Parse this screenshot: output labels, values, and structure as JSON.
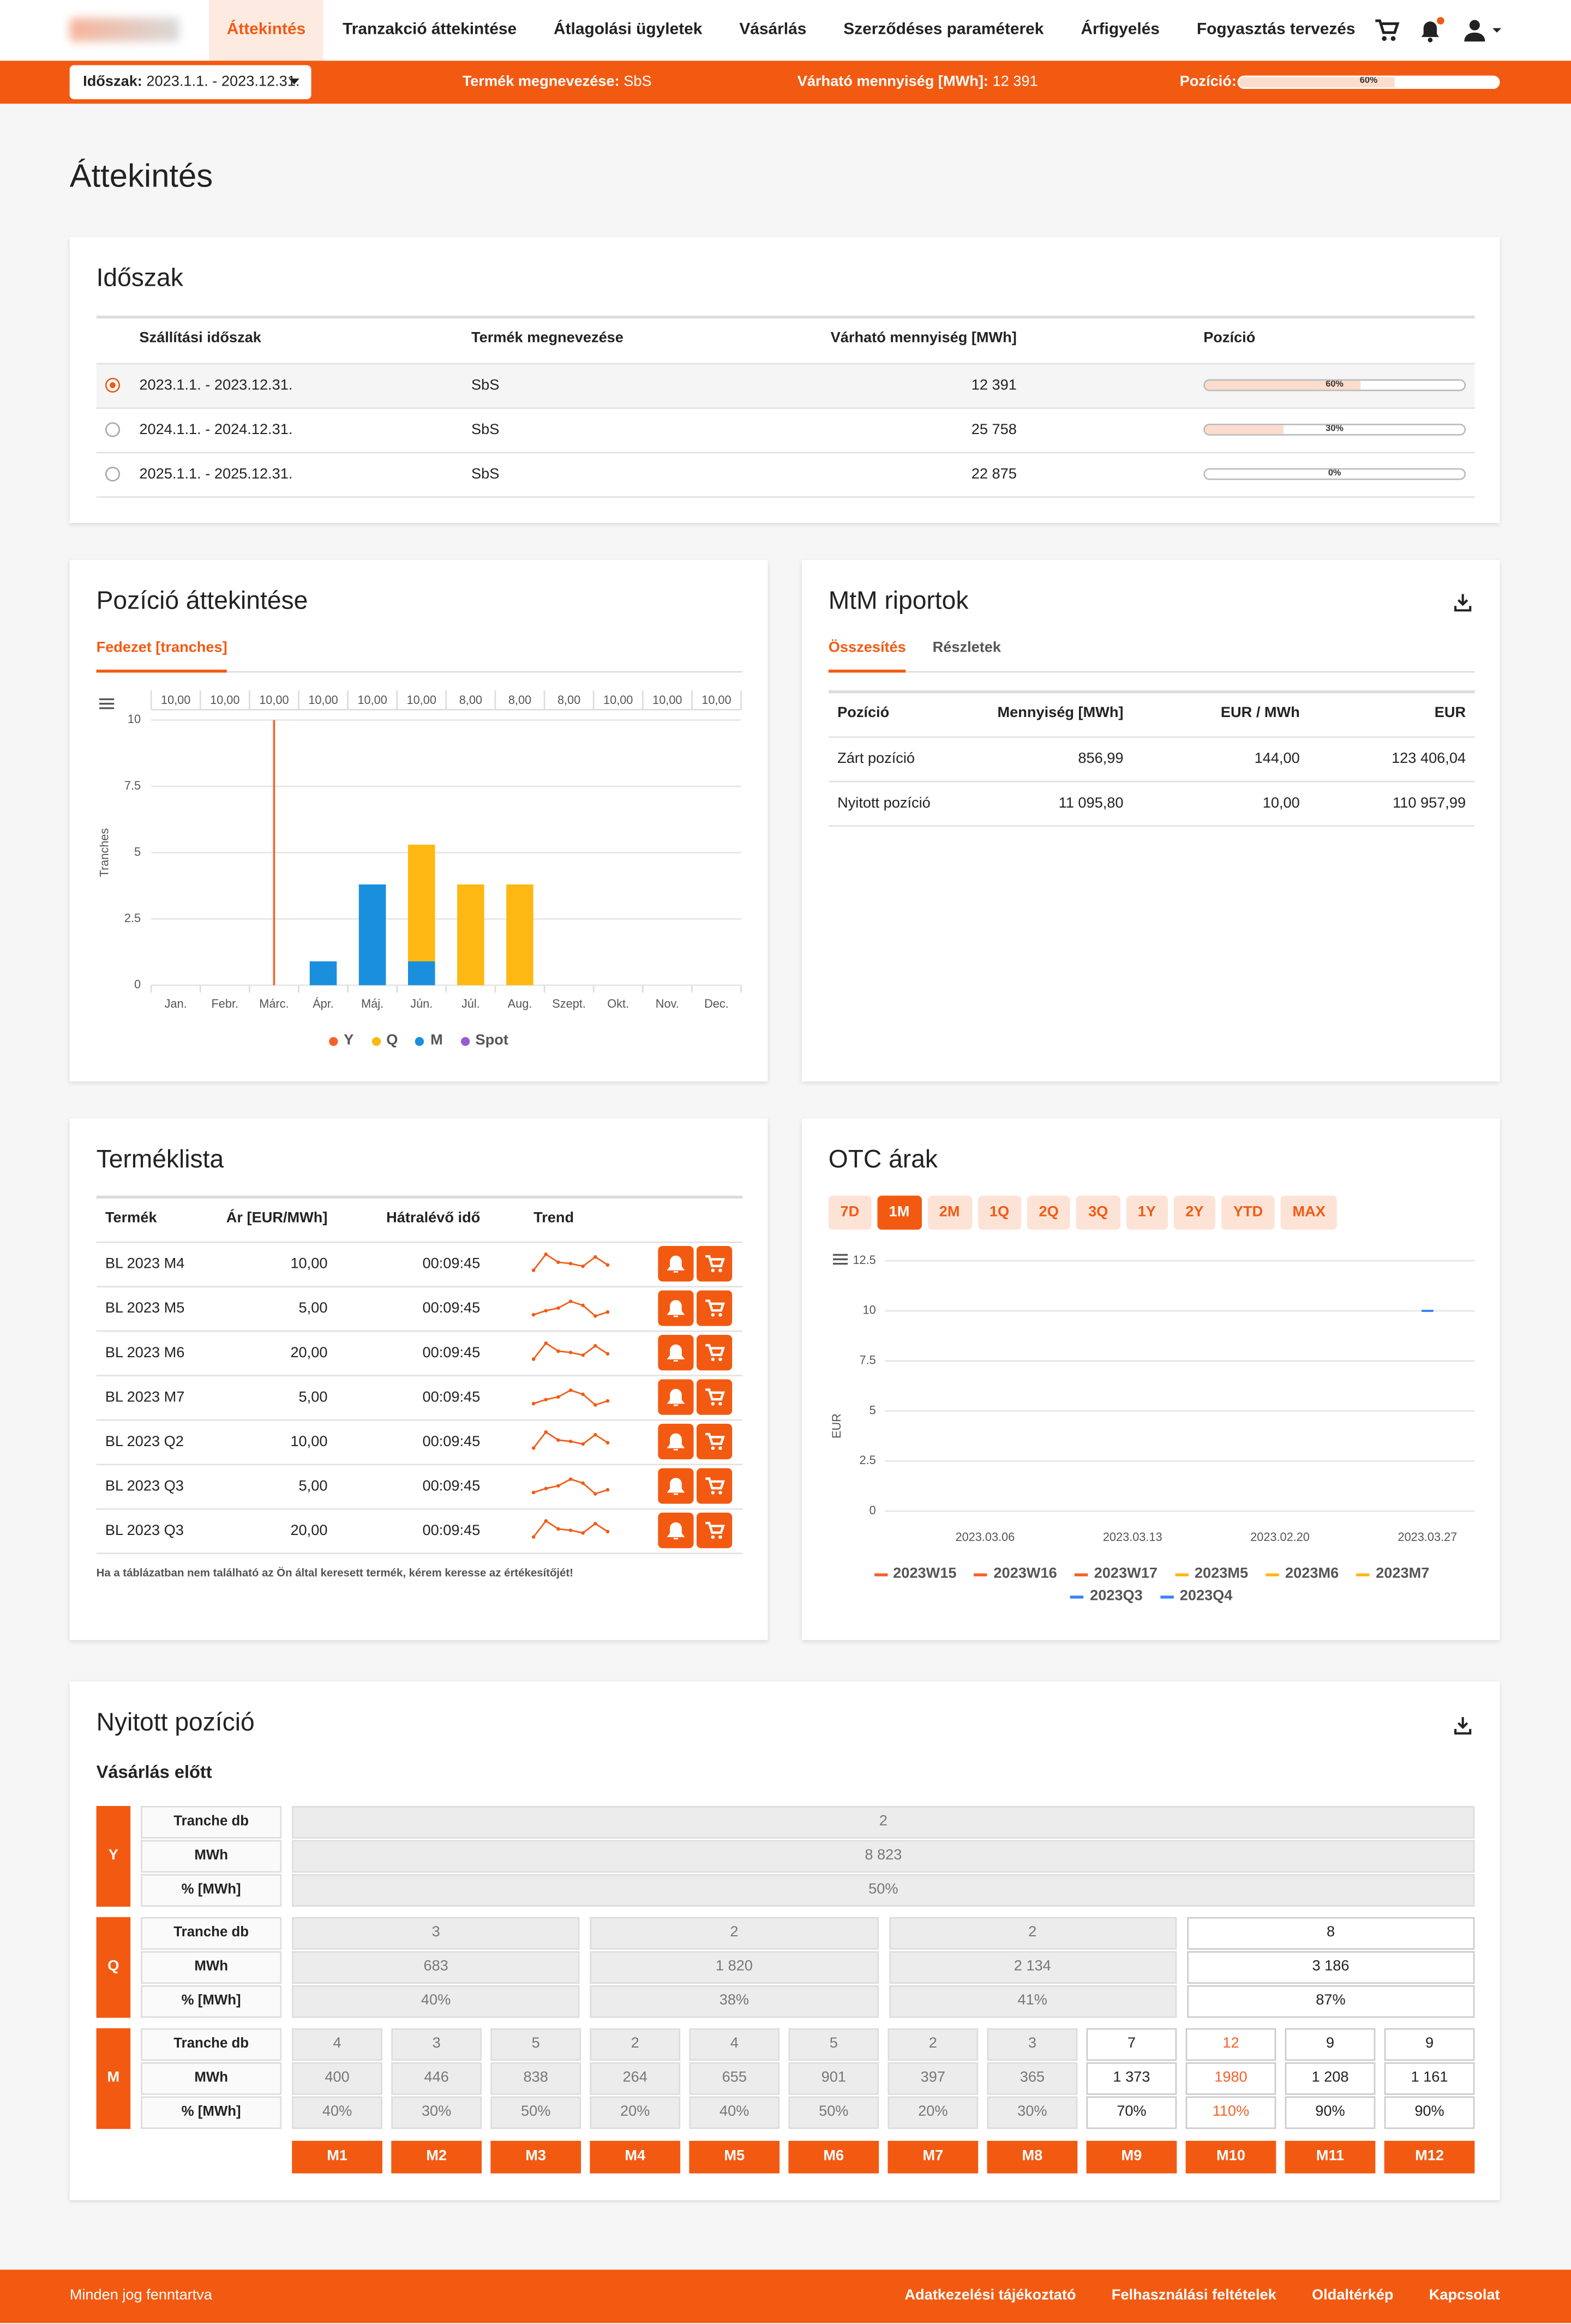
{
  "nav": {
    "items": [
      "Áttekintés",
      "Tranzakció áttekintése",
      "Átlagolási ügyletek",
      "Vásárlás",
      "Szerződéses paraméterek",
      "Árfigyelés",
      "Fogyasztás tervezés"
    ],
    "active": 0
  },
  "filter_bar": {
    "period_label": "Időszak:",
    "period": "2023.1.1. - 2023.12.31.",
    "product_label": "Termék megnevezése:",
    "product": "SbS",
    "quantity_label": "Várható mennyiség [MWh]:",
    "quantity": "12 391",
    "position_label": "Pozíció:",
    "position": {
      "value": 60,
      "label": "60%"
    }
  },
  "page_title": "Áttekintés",
  "period_card": {
    "title": "Időszak",
    "headers": [
      "Szállítási időszak",
      "Termék megnevezése",
      "Várható mennyiség [MWh]",
      "Pozíció"
    ],
    "rows": [
      {
        "period": "2023.1.1. - 2023.12.31.",
        "product": "SbS",
        "quantity": "12 391",
        "position": {
          "value": 60,
          "label": "60%"
        },
        "selected": true
      },
      {
        "period": "2024.1.1. - 2024.12.31.",
        "product": "SbS",
        "quantity": "25 758",
        "position": {
          "value": 30,
          "label": "30%"
        },
        "selected": false
      },
      {
        "period": "2025.1.1. - 2025.12.31.",
        "product": "SbS",
        "quantity": "22 875",
        "position": {
          "value": 0,
          "label": "0%"
        },
        "selected": false
      }
    ]
  },
  "position_chart": {
    "title": "Pozíció áttekintése",
    "tab": "Fedezet [tranches]",
    "chart": {
      "type": "bar",
      "stacked": true,
      "y_label": "Tranches",
      "categories": [
        "Jan.",
        "Febr.",
        "Márc.",
        "Ápr.",
        "Máj.",
        "Jún.",
        "Júl.",
        "Aug.",
        "Szept.",
        "Okt.",
        "Nov.",
        "Dec."
      ],
      "top_labels": [
        "10,00",
        "10,00",
        "10,00",
        "10,00",
        "10,00",
        "10,00",
        "8,00",
        "8,00",
        "8,00",
        "10,00",
        "10,00",
        "10,00"
      ],
      "ylim": [
        0,
        10
      ],
      "yticks": [
        0,
        2.5,
        5,
        7.5,
        10
      ],
      "grid": true,
      "series": [
        {
          "name": "Y",
          "color": "#f4622a",
          "values": [
            0,
            0,
            10,
            0,
            0,
            0,
            0,
            0,
            0,
            0,
            0,
            0
          ]
        },
        {
          "name": "Q",
          "color": "#fdb813",
          "values": [
            0,
            0,
            0,
            0,
            0,
            4.4,
            3.8,
            3.8,
            0,
            0,
            0,
            0
          ]
        },
        {
          "name": "M",
          "color": "#1a8fdd",
          "values": [
            0,
            0,
            0,
            0.9,
            3.8,
            0.9,
            0,
            0,
            0,
            0,
            0,
            0
          ]
        },
        {
          "name": "Spot",
          "color": "#9b59d6",
          "values": [
            0,
            0,
            0,
            0,
            0,
            0,
            0,
            0,
            0,
            0,
            0,
            0
          ]
        }
      ]
    }
  },
  "mtm_card": {
    "title": "MtM riportok",
    "tabs": [
      "Összesítés",
      "Részletek"
    ],
    "active_tab": 0,
    "headers": [
      "Pozíció",
      "Mennyiség [MWh]",
      "EUR / MWh",
      "EUR"
    ],
    "rows": [
      [
        "Zárt pozíció",
        "856,99",
        "144,00",
        "123 406,04"
      ],
      [
        "Nyitott pozíció",
        "11 095,80",
        "10,00",
        "110 957,99"
      ]
    ]
  },
  "product_list": {
    "title": "Terméklista",
    "headers": [
      "Termék",
      "Ár [EUR/MWh]",
      "Hátralévő idő",
      "Trend"
    ],
    "rows": [
      {
        "product": "BL 2023 M4",
        "price": "10,00",
        "time": "00:09:45",
        "trend": [
          2,
          8,
          5,
          4.5,
          3.5,
          7,
          4
        ]
      },
      {
        "product": "BL 2023 M5",
        "price": "5,00",
        "time": "00:09:45",
        "trend": [
          2,
          3.5,
          4.5,
          7,
          5.5,
          1.5,
          3
        ]
      },
      {
        "product": "BL 2023 M6",
        "price": "20,00",
        "time": "00:09:45",
        "trend": [
          2,
          8,
          5,
          4.5,
          3.5,
          7,
          4
        ]
      },
      {
        "product": "BL 2023 M7",
        "price": "5,00",
        "time": "00:09:45",
        "trend": [
          2,
          3.5,
          4.5,
          7,
          5.5,
          1.5,
          3
        ]
      },
      {
        "product": "BL 2023 Q2",
        "price": "10,00",
        "time": "00:09:45",
        "trend": [
          2,
          8,
          5,
          4.5,
          3.5,
          7,
          4
        ]
      },
      {
        "product": "BL 2023 Q3",
        "price": "5,00",
        "time": "00:09:45",
        "trend": [
          2,
          3.5,
          4.5,
          7,
          5.5,
          1.5,
          3
        ]
      },
      {
        "product": "BL 2023 Q3",
        "price": "20,00",
        "time": "00:09:45",
        "trend": [
          2,
          8,
          5,
          4.5,
          3.5,
          7,
          4
        ]
      }
    ],
    "note": "Ha a táblázatban nem található az Ön által keresett termék, kérem keresse az értékesítőjét!"
  },
  "otc_chart": {
    "title": "OTC árak",
    "ranges": [
      "7D",
      "1M",
      "2M",
      "1Q",
      "2Q",
      "3Q",
      "1Y",
      "2Y",
      "YTD",
      "MAX"
    ],
    "active_range": 1,
    "chart": {
      "type": "line",
      "y_label": "EUR",
      "categories": [
        "2023.03.06",
        "2023.03.13",
        "2023.02.20",
        "2023.03.27"
      ],
      "ylim": [
        0,
        12.5
      ],
      "yticks": [
        0,
        2.5,
        5,
        7.5,
        10,
        12.5
      ],
      "grid": true,
      "series": [
        {
          "name": "2023W15",
          "color": "#f4622a",
          "values": [
            null,
            null,
            null,
            null
          ]
        },
        {
          "name": "2023W16",
          "color": "#f4622a",
          "values": [
            null,
            null,
            null,
            null
          ]
        },
        {
          "name": "2023W17",
          "color": "#f4622a",
          "values": [
            null,
            null,
            null,
            null
          ]
        },
        {
          "name": "2023M5",
          "color": "#fdb813",
          "values": [
            null,
            null,
            null,
            null
          ]
        },
        {
          "name": "2023M6",
          "color": "#fdb813",
          "values": [
            null,
            null,
            null,
            null
          ]
        },
        {
          "name": "2023M7",
          "color": "#fdb813",
          "values": [
            null,
            null,
            null,
            null
          ]
        },
        {
          "name": "2023Q3",
          "color": "#3b82f6",
          "values": [
            null,
            null,
            null,
            null
          ]
        },
        {
          "name": "2023Q4",
          "color": "#3b82f6",
          "values": [
            null,
            null,
            null,
            10
          ]
        }
      ]
    }
  },
  "open_position": {
    "title": "Nyitott pozíció",
    "subtitle": "Vásárlás előtt",
    "groups": [
      {
        "label": "Y",
        "row_labels": [
          "Tranche db",
          "MWh",
          "% [MWh]"
        ],
        "cells": [
          {
            "values": [
              "2",
              "8 823",
              "50%"
            ],
            "shaded": true
          }
        ]
      },
      {
        "label": "Q",
        "row_labels": [
          "Tranche db",
          "MWh",
          "% [MWh]"
        ],
        "cells": [
          {
            "values": [
              "3",
              "683",
              "40%"
            ],
            "shaded": true
          },
          {
            "values": [
              "2",
              "1 820",
              "38%"
            ],
            "shaded": true
          },
          {
            "values": [
              "2",
              "2 134",
              "41%"
            ],
            "shaded": true
          },
          {
            "values": [
              "8",
              "3 186",
              "87%"
            ],
            "shaded": false
          }
        ]
      },
      {
        "label": "M",
        "row_labels": [
          "Tranche db",
          "MWh",
          "% [MWh]"
        ],
        "cells": [
          {
            "values": [
              "4",
              "400",
              "40%"
            ],
            "shaded": true
          },
          {
            "values": [
              "3",
              "446",
              "30%"
            ],
            "shaded": true
          },
          {
            "values": [
              "5",
              "838",
              "50%"
            ],
            "shaded": true
          },
          {
            "values": [
              "2",
              "264",
              "20%"
            ],
            "shaded": true
          },
          {
            "values": [
              "4",
              "655",
              "40%"
            ],
            "shaded": true
          },
          {
            "values": [
              "5",
              "901",
              "50%"
            ],
            "shaded": true
          },
          {
            "values": [
              "2",
              "397",
              "20%"
            ],
            "shaded": true
          },
          {
            "values": [
              "3",
              "365",
              "30%"
            ],
            "shaded": true
          },
          {
            "values": [
              "7",
              "1 373",
              "70%"
            ],
            "shaded": false
          },
          {
            "values": [
              "12",
              "1980",
              "110%"
            ],
            "shaded": false,
            "color": "#f4622a"
          },
          {
            "values": [
              "9",
              "1 208",
              "90%"
            ],
            "shaded": false
          },
          {
            "values": [
              "9",
              "1 161",
              "90%"
            ],
            "shaded": false
          }
        ]
      }
    ],
    "months": [
      "M1",
      "M2",
      "M3",
      "M4",
      "M5",
      "M6",
      "M7",
      "M8",
      "M9",
      "M10",
      "M11",
      "M12"
    ]
  },
  "footer": {
    "copyright": "Minden jog fenntartva",
    "links": [
      "Adatkezelési tájékoztató",
      "Felhasználási feltételek",
      "Oldaltérkép",
      "Kapcsolat"
    ]
  }
}
